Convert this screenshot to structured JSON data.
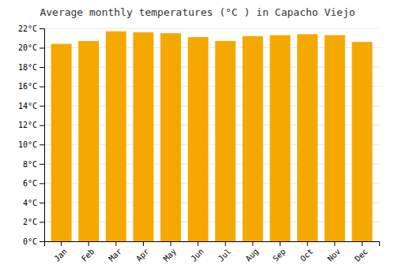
{
  "chart_data": {
    "type": "bar",
    "title": "Average monthly temperatures (°C ) in Capacho Viejo",
    "categories": [
      "Jan",
      "Feb",
      "Mar",
      "Apr",
      "May",
      "Jun",
      "Jul",
      "Aug",
      "Sep",
      "Oct",
      "Nov",
      "Dec"
    ],
    "values": [
      20.4,
      20.7,
      21.7,
      21.6,
      21.5,
      21.1,
      20.7,
      21.2,
      21.3,
      21.4,
      21.3,
      20.6
    ],
    "color": "#F5A800",
    "ylim": [
      0,
      22
    ],
    "yticks": [
      {
        "value": 0,
        "label": "0°C"
      },
      {
        "value": 2,
        "label": "2°C"
      },
      {
        "value": 4,
        "label": "4°C"
      },
      {
        "value": 6,
        "label": "6°C"
      },
      {
        "value": 8,
        "label": "8°C"
      },
      {
        "value": 10,
        "label": "10°C"
      },
      {
        "value": 12,
        "label": "12°C"
      },
      {
        "value": 14,
        "label": "14°C"
      },
      {
        "value": 16,
        "label": "16°C"
      },
      {
        "value": 18,
        "label": "18°C"
      },
      {
        "value": 20,
        "label": "20°C"
      },
      {
        "value": 22,
        "label": "22°C"
      }
    ],
    "grid": true
  }
}
